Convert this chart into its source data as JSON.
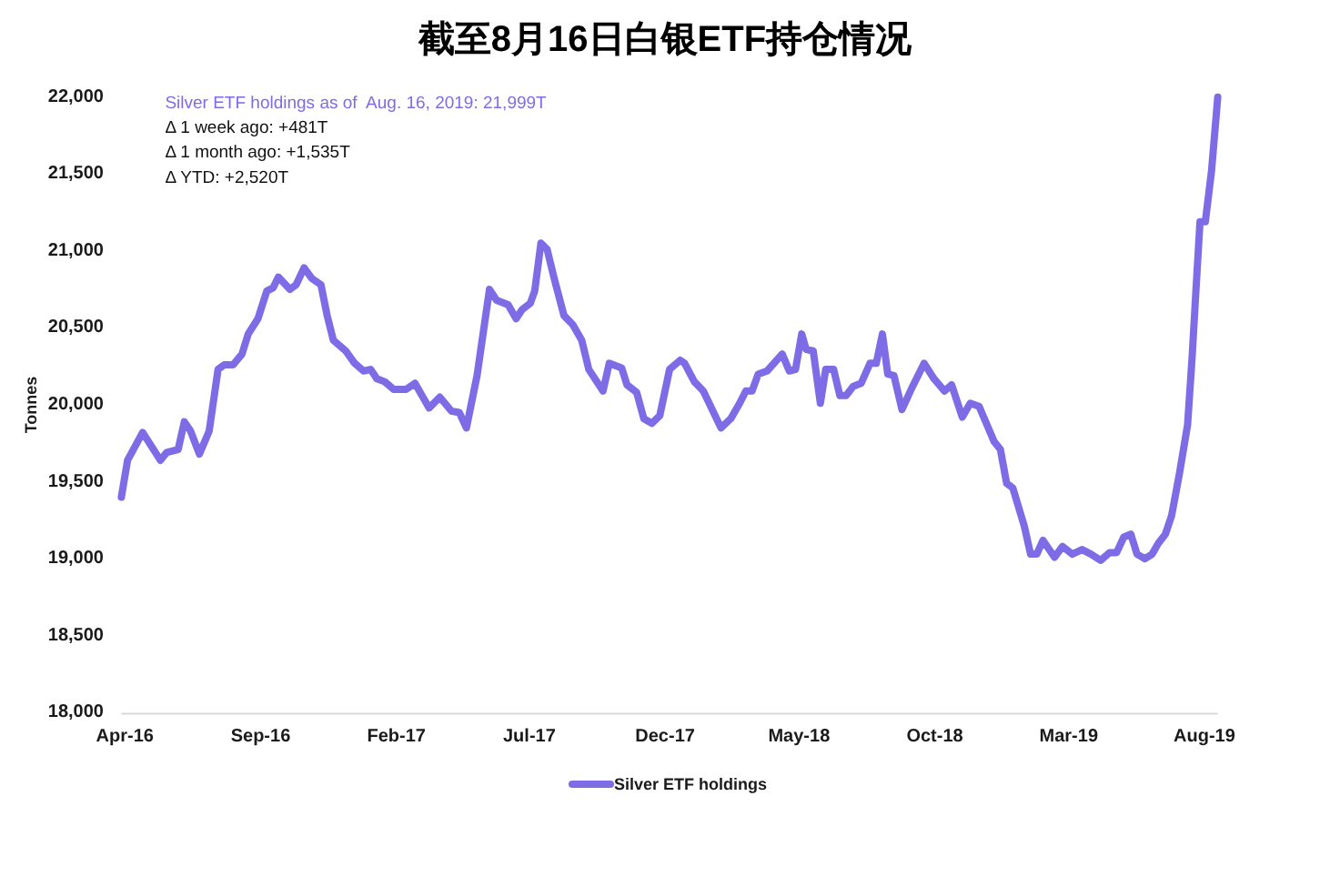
{
  "chart_data": {
    "type": "line",
    "title": "截至8月16日白银ETF持仓情况",
    "ylabel": "Tonnes",
    "annotations": [
      "Silver ETF holdings as of  Aug. 16, 2019: 21,999T",
      "Δ 1 week ago: +481T",
      "Δ 1 month ago: +1,535T",
      "Δ YTD: +2,520T"
    ],
    "x": [
      "2016-03-28",
      "2016-04-04",
      "2016-04-21",
      "2016-05-11",
      "2016-05-18",
      "2016-05-31",
      "2016-06-07",
      "2016-06-14",
      "2016-06-24",
      "2016-07-05",
      "2016-07-15",
      "2016-07-22",
      "2016-08-01",
      "2016-08-11",
      "2016-08-18",
      "2016-08-29",
      "2016-09-08",
      "2016-09-15",
      "2016-09-21",
      "2016-10-04",
      "2016-10-11",
      "2016-10-20",
      "2016-10-29",
      "2016-11-08",
      "2016-11-15",
      "2016-11-22",
      "2016-12-06",
      "2016-12-16",
      "2016-12-26",
      "2017-01-03",
      "2017-01-10",
      "2017-01-19",
      "2017-01-29",
      "2017-02-12",
      "2017-02-22",
      "2017-03-01",
      "2017-03-10",
      "2017-03-22",
      "2017-04-04",
      "2017-04-13",
      "2017-04-21",
      "2017-05-03",
      "2017-05-17",
      "2017-05-25",
      "2017-06-07",
      "2017-06-16",
      "2017-06-23",
      "2017-07-02",
      "2017-07-07",
      "2017-07-14",
      "2017-07-21",
      "2017-07-29",
      "2017-08-09",
      "2017-08-19",
      "2017-08-29",
      "2017-09-06",
      "2017-09-22",
      "2017-09-29",
      "2017-10-13",
      "2017-10-19",
      "2017-10-30",
      "2017-11-07",
      "2017-11-16",
      "2017-11-25",
      "2017-12-06",
      "2017-12-18",
      "2017-12-23",
      "2018-01-03",
      "2018-01-13",
      "2018-01-23",
      "2018-02-02",
      "2018-02-13",
      "2018-02-23",
      "2018-03-02",
      "2018-03-09",
      "2018-03-16",
      "2018-03-26",
      "2018-04-12",
      "2018-04-20",
      "2018-04-27",
      "2018-05-04",
      "2018-05-09",
      "2018-05-17",
      "2018-05-25",
      "2018-05-31",
      "2018-06-09",
      "2018-06-16",
      "2018-06-23",
      "2018-07-01",
      "2018-07-10",
      "2018-07-20",
      "2018-07-27",
      "2018-08-03",
      "2018-08-09",
      "2018-08-16",
      "2018-08-25",
      "2018-09-06",
      "2018-09-19",
      "2018-09-30",
      "2018-10-12",
      "2018-10-20",
      "2018-11-01",
      "2018-11-10",
      "2018-11-20",
      "2018-12-07",
      "2018-12-14",
      "2018-12-21",
      "2018-12-28",
      "2019-01-10",
      "2019-01-17",
      "2019-01-24",
      "2019-01-31",
      "2019-02-13",
      "2019-02-22",
      "2019-03-05",
      "2019-03-16",
      "2019-03-26",
      "2019-04-06",
      "2019-04-16",
      "2019-04-24",
      "2019-05-02",
      "2019-05-10",
      "2019-05-17",
      "2019-05-26",
      "2019-06-03",
      "2019-06-10",
      "2019-06-18",
      "2019-06-25",
      "2019-07-04",
      "2019-07-13",
      "2019-07-18",
      "2019-07-23",
      "2019-07-27",
      "2019-08-02",
      "2019-08-09",
      "2019-08-16"
    ],
    "series": [
      {
        "name": "Silver ETF holdings",
        "color": "#7e6ce6",
        "values": [
          19400,
          19640,
          19820,
          19640,
          19690,
          19710,
          19890,
          19830,
          19680,
          19830,
          20230,
          20260,
          20260,
          20330,
          20460,
          20560,
          20740,
          20760,
          20830,
          20750,
          20780,
          20890,
          20820,
          20780,
          20580,
          20420,
          20350,
          20270,
          20220,
          20230,
          20170,
          20150,
          20100,
          20100,
          20140,
          20070,
          19980,
          20050,
          19960,
          19950,
          19850,
          20190,
          20750,
          20680,
          20650,
          20560,
          20620,
          20660,
          20740,
          21050,
          21010,
          20820,
          20580,
          20520,
          20420,
          20230,
          20090,
          20270,
          20240,
          20130,
          20080,
          19910,
          19880,
          19930,
          20230,
          20290,
          20270,
          20150,
          20090,
          19970,
          19850,
          19910,
          20010,
          20090,
          20090,
          20200,
          20220,
          20330,
          20220,
          20230,
          20460,
          20360,
          20350,
          20010,
          20230,
          20230,
          20060,
          20060,
          20120,
          20140,
          20270,
          20270,
          20460,
          20200,
          20190,
          19970,
          20120,
          20270,
          20170,
          20090,
          20130,
          19920,
          20010,
          19990,
          19760,
          19710,
          19490,
          19460,
          19210,
          19030,
          19030,
          19120,
          19010,
          19080,
          19030,
          19060,
          19030,
          18990,
          19040,
          19040,
          19140,
          19160,
          19030,
          19000,
          19030,
          19100,
          19160,
          19280,
          19560,
          19870,
          20300,
          20800,
          21190,
          21190,
          21520,
          21999
        ]
      }
    ],
    "xlim": [
      "2016-03-28",
      "2019-08-16"
    ],
    "xticks": [
      {
        "value": "2016-04-01",
        "label": "Apr-16"
      },
      {
        "value": "2016-09-01",
        "label": "Sep-16"
      },
      {
        "value": "2017-02-01",
        "label": "Feb-17"
      },
      {
        "value": "2017-07-01",
        "label": "Jul-17"
      },
      {
        "value": "2017-12-01",
        "label": "Dec-17"
      },
      {
        "value": "2018-05-01",
        "label": "May-18"
      },
      {
        "value": "2018-10-01",
        "label": "Oct-18"
      },
      {
        "value": "2019-03-01",
        "label": "Mar-19"
      },
      {
        "value": "2019-08-01",
        "label": "Aug-19"
      }
    ],
    "ylim": [
      18000,
      22000
    ],
    "yticks": [
      {
        "value": 18000,
        "label": "18,000"
      },
      {
        "value": 18500,
        "label": "18,500"
      },
      {
        "value": 19000,
        "label": "19,000"
      },
      {
        "value": 19500,
        "label": "19,500"
      },
      {
        "value": 20000,
        "label": "20,000"
      },
      {
        "value": 20500,
        "label": "20,500"
      },
      {
        "value": 21000,
        "label": "21,000"
      },
      {
        "value": 21500,
        "label": "21,500"
      },
      {
        "value": 22000,
        "label": "22,000"
      }
    ],
    "legend": "bottom"
  }
}
